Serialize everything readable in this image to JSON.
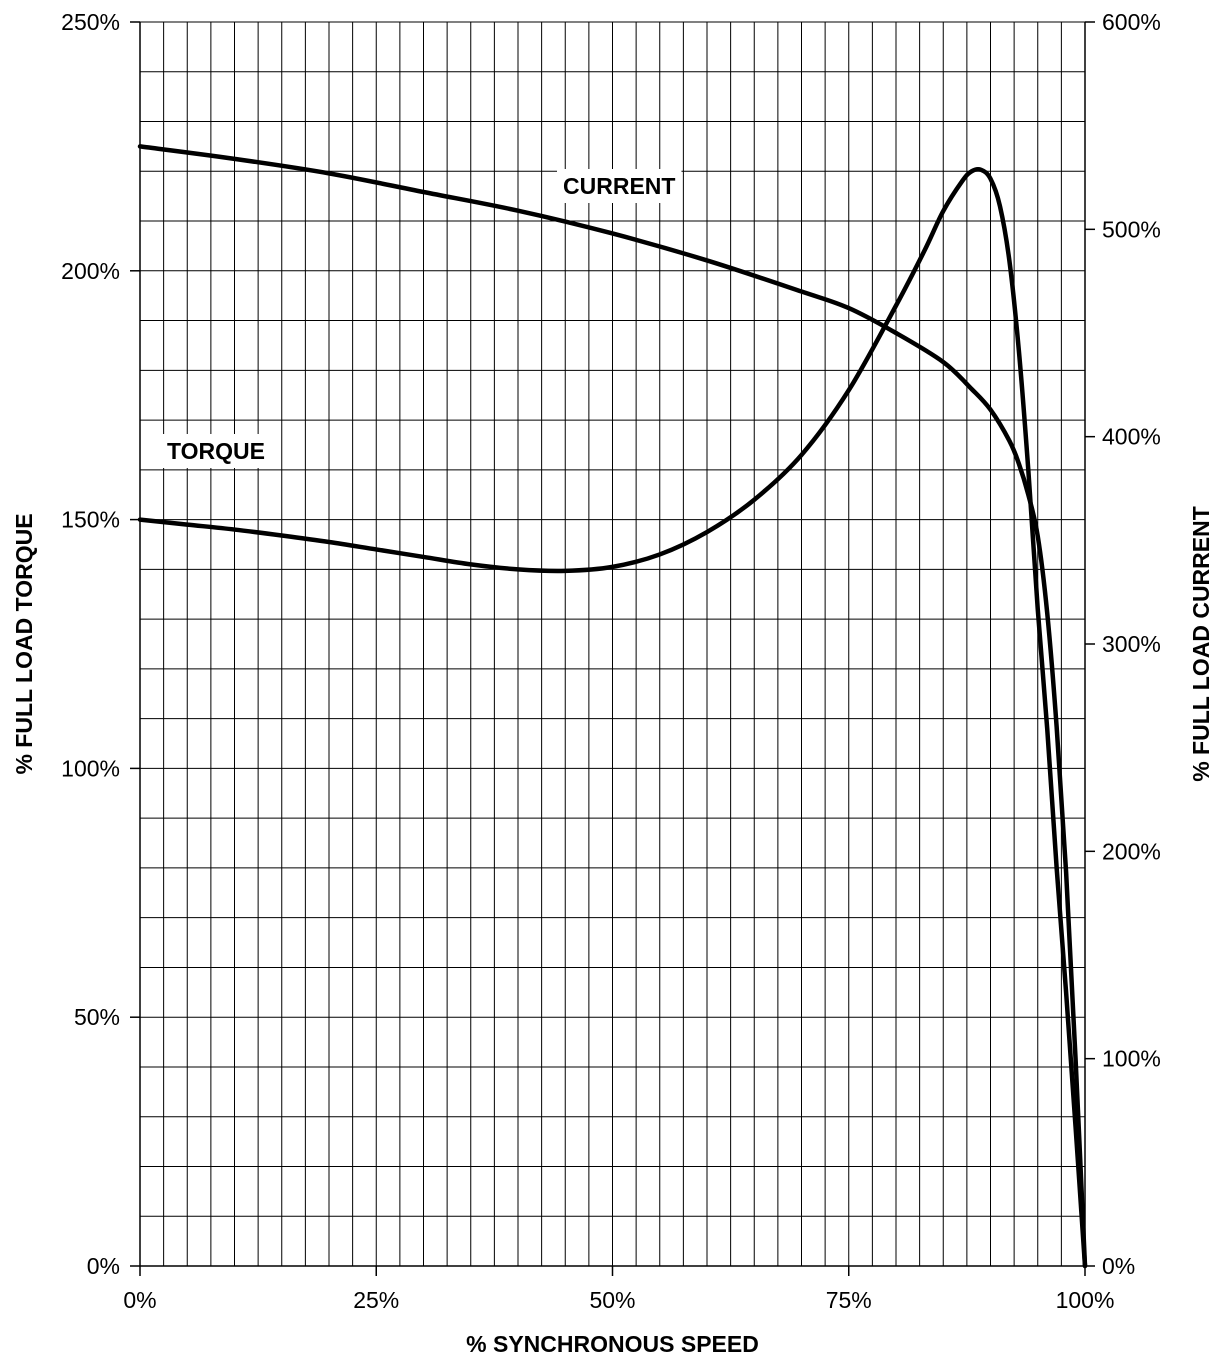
{
  "chart_data": {
    "type": "line",
    "x_axis": {
      "label": "% SYNCHRONOUS SPEED",
      "range": [
        0,
        100
      ],
      "ticks": [
        0,
        25,
        50,
        75,
        100
      ],
      "tick_labels": [
        "0%",
        "25%",
        "50%",
        "75%",
        "100%"
      ],
      "minor_step": 2.5
    },
    "y_axis_left": {
      "label": "% FULL LOAD TORQUE",
      "range": [
        0,
        250
      ],
      "ticks": [
        0,
        50,
        100,
        150,
        200,
        250
      ],
      "tick_labels": [
        "0%",
        "50%",
        "100%",
        "150%",
        "200%",
        "250%"
      ],
      "minor_step": 10
    },
    "y_axis_right": {
      "label": "% FULL LOAD CURRENT",
      "range": [
        0,
        600
      ],
      "ticks": [
        0,
        100,
        200,
        300,
        400,
        500,
        600
      ],
      "tick_labels": [
        "0%",
        "100%",
        "200%",
        "300%",
        "400%",
        "500%",
        "600%"
      ]
    },
    "grid": true,
    "series": [
      {
        "name": "TORQUE",
        "axis": "left",
        "points": [
          [
            0,
            150
          ],
          [
            5,
            149
          ],
          [
            10,
            148
          ],
          [
            15,
            146.8
          ],
          [
            20,
            145.5
          ],
          [
            25,
            144
          ],
          [
            30,
            142.5
          ],
          [
            35,
            141
          ],
          [
            40,
            140
          ],
          [
            45,
            139.7
          ],
          [
            50,
            140.5
          ],
          [
            55,
            143
          ],
          [
            60,
            147.5
          ],
          [
            65,
            154
          ],
          [
            70,
            163
          ],
          [
            75,
            176
          ],
          [
            80,
            193
          ],
          [
            83,
            204
          ],
          [
            85,
            212
          ],
          [
            87,
            218
          ],
          [
            88,
            220
          ],
          [
            89,
            220.3
          ],
          [
            90,
            218.5
          ],
          [
            91,
            213
          ],
          [
            92,
            202
          ],
          [
            93,
            184
          ],
          [
            94,
            160
          ],
          [
            95,
            132
          ],
          [
            96,
            108
          ],
          [
            97,
            80
          ],
          [
            98,
            55
          ],
          [
            99,
            28
          ],
          [
            100,
            0
          ]
        ]
      },
      {
        "name": "CURRENT",
        "axis": "right",
        "points": [
          [
            0,
            540
          ],
          [
            10,
            534
          ],
          [
            20,
            527
          ],
          [
            30,
            518
          ],
          [
            40,
            509
          ],
          [
            50,
            498
          ],
          [
            60,
            485
          ],
          [
            70,
            470
          ],
          [
            75,
            462
          ],
          [
            80,
            450
          ],
          [
            85,
            436
          ],
          [
            88,
            423
          ],
          [
            90,
            413
          ],
          [
            92,
            398
          ],
          [
            93,
            387
          ],
          [
            94,
            372
          ],
          [
            95,
            352
          ],
          [
            96,
            315
          ],
          [
            97,
            260
          ],
          [
            98,
            190
          ],
          [
            99,
            100
          ],
          [
            100,
            0
          ]
        ]
      }
    ]
  }
}
